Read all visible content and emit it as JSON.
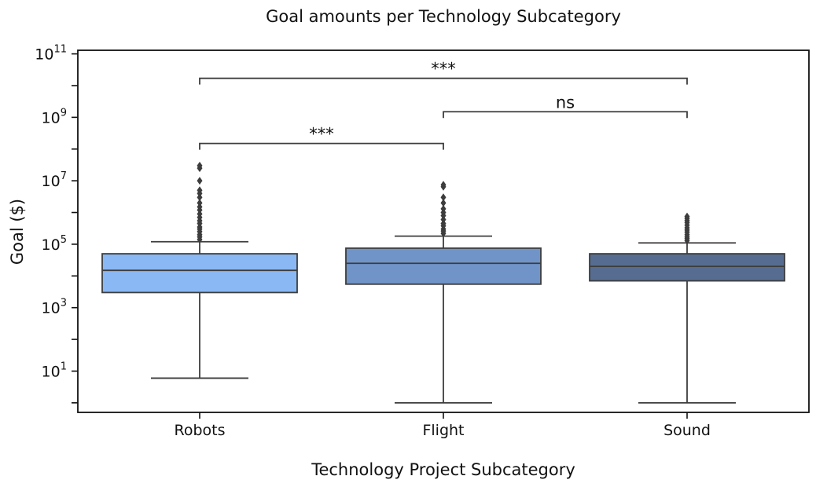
{
  "chart_data": {
    "type": "box",
    "title": "Goal amounts per Technology Subcategory",
    "xlabel": "Technology Project Subcategory",
    "ylabel": "Goal ($)",
    "yscale": "log",
    "ylim": [
      0.5,
      130000000000
    ],
    "y_ticks": [
      {
        "value": 10,
        "base": "10",
        "exp": "1"
      },
      {
        "value": 1000,
        "base": "10",
        "exp": "3"
      },
      {
        "value": 100000,
        "base": "10",
        "exp": "5"
      },
      {
        "value": 10000000,
        "base": "10",
        "exp": "7"
      },
      {
        "value": 1000000000,
        "base": "10",
        "exp": "9"
      },
      {
        "value": 100000000000,
        "base": "10",
        "exp": "11"
      }
    ],
    "categories": [
      "Robots",
      "Flight",
      "Sound"
    ],
    "boxes": [
      {
        "category": "Robots",
        "color": "#8ab8f5",
        "whisker_low": 6,
        "q1": 3000,
        "median": 15000,
        "q3": 50000,
        "whisker_high": 120000,
        "outliers": [
          140000,
          170000,
          200000,
          250000,
          300000,
          350000,
          450000,
          550000,
          700000,
          900000,
          1200000,
          1500000,
          2000000,
          3000000,
          4000000,
          5000000,
          10000000,
          25000000,
          30000000
        ]
      },
      {
        "category": "Flight",
        "color": "#7094c8",
        "whisker_low": 1,
        "q1": 5500,
        "median": 25000,
        "q3": 75000,
        "whisker_high": 180000,
        "outliers": [
          220000,
          260000,
          300000,
          380000,
          450000,
          600000,
          800000,
          1000000,
          1300000,
          2000000,
          3000000,
          6500000,
          7500000
        ]
      },
      {
        "category": "Sound",
        "color": "#566d91",
        "whisker_low": 1,
        "q1": 7000,
        "median": 20000,
        "q3": 50000,
        "whisker_high": 110000,
        "outliers": [
          130000,
          150000,
          170000,
          200000,
          240000,
          280000,
          330000,
          400000,
          480000,
          560000,
          650000,
          750000
        ]
      }
    ],
    "annotations": [
      {
        "from": "Robots",
        "to": "Flight",
        "y": 150000000,
        "text": "***"
      },
      {
        "from": "Flight",
        "to": "Sound",
        "y": 1500000000,
        "text": "ns"
      },
      {
        "from": "Robots",
        "to": "Sound",
        "y": 17000000000,
        "text": "***"
      }
    ]
  }
}
